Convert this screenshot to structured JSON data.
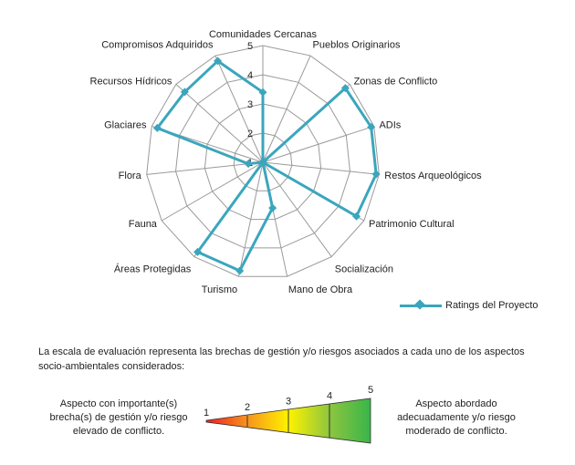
{
  "chart_data": {
    "type": "radar",
    "categories": [
      "Comunidades Cercanas",
      "Pueblos Originarios",
      "Zonas de Conflicto",
      "ADIs",
      "Restos Arqueológicos",
      "Patrimonio Cultural",
      "Socialización",
      "Mano de Obra",
      "Turismo",
      "Áreas Protegidas",
      "Fauna",
      "Flora",
      "Glaciares",
      "Recursos Hídricos",
      "Compromisos Adquiridos"
    ],
    "series": [
      {
        "name": "Ratings del Proyecto",
        "color": "#3aa6bd",
        "values": [
          3.4,
          1,
          4.8,
          4.9,
          4.9,
          4.7,
          1,
          2.6,
          4.8,
          4.8,
          1,
          1.5,
          4.8,
          4.6,
          4.8
        ]
      }
    ],
    "rmin": 1,
    "rmax": 5,
    "ticks": [
      "1",
      "2",
      "3",
      "4",
      "5"
    ],
    "grid": true,
    "legend_position": "bottom-right"
  },
  "legend": {
    "label": "Ratings del Proyecto"
  },
  "scale_note": "La escala  de evaluación representa las brechas de gestión y/o riesgos asociados a cada uno de los aspectos socio-ambientales considerados:",
  "gauge": {
    "labels": [
      "1",
      "2",
      "3",
      "4",
      "5"
    ],
    "colors": [
      "#ee1c24",
      "#f7941d",
      "#fff200",
      "#8dc63f",
      "#39b54a"
    ]
  },
  "left_note": "Aspecto con importante(s) brecha(s) de gestión y/o riesgo elevado de conflicto.",
  "right_note": "Aspecto abordado adecuadamente y/o riesgo moderado de conflicto."
}
